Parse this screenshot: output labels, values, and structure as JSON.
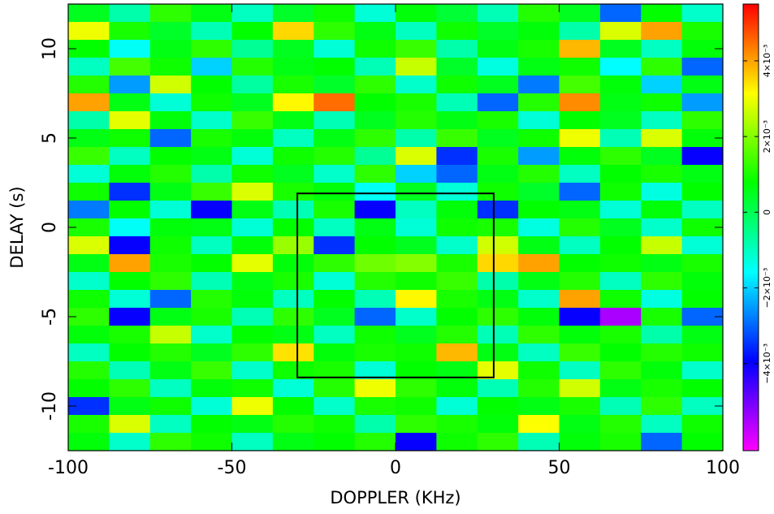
{
  "chart_data": {
    "type": "heatmap",
    "x_label": "DOPPLER (KHz)",
    "y_label": "DELAY (s)",
    "xlim": [
      -100,
      100
    ],
    "ylim": [
      -12.5,
      12.5
    ],
    "xticks": [
      -100,
      -50,
      0,
      50,
      100
    ],
    "yticks": [
      -10,
      -5,
      0,
      5,
      10
    ],
    "clim": [
      -0.0063,
      0.0055
    ],
    "cticks": [
      {
        "value": -0.004,
        "label": "−4×10⁻³"
      },
      {
        "value": -0.002,
        "label": "−2×10⁻³"
      },
      0,
      {
        "value": 0.002,
        "label": "2×10⁻³"
      },
      {
        "value": 0.004,
        "label": "4×10⁻³"
      }
    ],
    "colormap": [
      "#ff00ff",
      "#0000ff",
      "#00ffff",
      "#00ff00",
      "#ffff00",
      "#ff0000"
    ],
    "box": {
      "x": [
        -30,
        30
      ],
      "y": [
        -8.4,
        1.9
      ]
    },
    "values": [
      [
        0.0005,
        -0.0008,
        0.0012,
        0.0006,
        -0.001,
        0.0004,
        0.0009,
        -0.0012,
        0.0007,
        0.0003,
        -0.0009,
        0.0011,
        0.0005,
        -0.003,
        0.0008,
        -0.0011
      ],
      [
        0.003,
        0.001,
        0.0004,
        -0.0009,
        0.0008,
        0.0035,
        0.0012,
        0.0006,
        -0.001,
        0.0009,
        0.0004,
        0.0007,
        -0.0008,
        0.0028,
        0.004,
        0.001
      ],
      [
        0.0008,
        -0.0015,
        0.0006,
        0.0012,
        -0.0006,
        0.0005,
        -0.0012,
        0.0009,
        0.0013,
        -0.0008,
        0.0006,
        0.001,
        0.0038,
        0.0005,
        -0.001,
        0.0007
      ],
      [
        -0.001,
        0.0014,
        0.0009,
        -0.002,
        0.0011,
        0.0006,
        0.0008,
        -0.0009,
        0.0026,
        0.0004,
        -0.0013,
        0.0006,
        0.0009,
        -0.0016,
        0.0012,
        -0.003
      ],
      [
        0.0011,
        -0.0025,
        0.0027,
        0.0008,
        -0.0007,
        0.001,
        0.0004,
        0.0012,
        -0.0011,
        0.0009,
        0.0005,
        -0.0028,
        0.0014,
        0.0007,
        -0.002,
        0.0006
      ],
      [
        0.004,
        0.0006,
        -0.0012,
        0.0009,
        0.0005,
        0.0032,
        0.0045,
        0.0008,
        0.001,
        -0.0009,
        -0.003,
        0.0011,
        0.0042,
        0.0006,
        0.0009,
        -0.0025
      ],
      [
        -0.0008,
        0.0029,
        0.0007,
        -0.0011,
        0.0013,
        0.0006,
        -0.0009,
        0.0005,
        0.0011,
        0.0006,
        0.001,
        -0.0012,
        0.0008,
        0.0005,
        -0.001,
        0.0012
      ],
      [
        0.0006,
        0.0009,
        -0.003,
        0.001,
        0.0007,
        -0.001,
        0.0006,
        0.0012,
        -0.0008,
        0.0013,
        0.0005,
        0.0009,
        0.003,
        -0.0009,
        0.0028,
        0.0007
      ],
      [
        0.0013,
        -0.001,
        0.0008,
        0.0006,
        -0.0012,
        0.0009,
        0.0011,
        -0.0006,
        0.0028,
        -0.0035,
        0.001,
        -0.0025,
        0.0007,
        0.0012,
        0.0005,
        -0.004
      ],
      [
        -0.0012,
        0.0007,
        0.0011,
        -0.0008,
        0.0009,
        0.0005,
        -0.0011,
        0.0012,
        -0.002,
        -0.003,
        0.0006,
        0.0011,
        -0.001,
        0.0008,
        0.001,
        0.0006
      ],
      [
        0.0009,
        -0.0035,
        0.0006,
        0.0013,
        0.0028,
        0.001,
        0.0007,
        -0.0015,
        0.0005,
        -0.0012,
        0.0009,
        0.0004,
        -0.003,
        0.0009,
        -0.0013,
        0.0008
      ],
      [
        -0.0028,
        0.0008,
        -0.0012,
        -0.004,
        0.0006,
        -0.0009,
        0.001,
        -0.004,
        -0.001,
        0.0007,
        -0.0035,
        0.0008,
        0.0006,
        -0.0012,
        0.0007,
        -0.001
      ],
      [
        0.001,
        -0.0015,
        0.0007,
        0.0006,
        -0.0012,
        0.0008,
        -0.001,
        0.0006,
        -0.0012,
        0.0009,
        0.001,
        -0.0013,
        0.0011,
        0.0005,
        -0.0011,
        0.0009
      ],
      [
        0.0028,
        -0.004,
        0.0009,
        -0.001,
        0.0007,
        0.0022,
        -0.0035,
        0.0008,
        0.0005,
        -0.0011,
        0.0027,
        0.0006,
        -0.001,
        0.0008,
        0.0026,
        -0.0012
      ],
      [
        0.0006,
        0.004,
        0.001,
        0.0008,
        0.0029,
        0.0007,
        0.0012,
        0.0018,
        0.002,
        0.001,
        0.0035,
        0.004,
        0.0008,
        0.0009,
        0.0006,
        0.001
      ],
      [
        -0.0011,
        0.0008,
        0.0012,
        -0.0009,
        0.0006,
        0.001,
        -0.0012,
        0.0011,
        0.0009,
        0.0013,
        -0.0008,
        0.0006,
        0.0011,
        -0.001,
        0.0012,
        0.0007
      ],
      [
        0.0009,
        -0.0012,
        -0.003,
        0.0011,
        0.0007,
        -0.001,
        0.0008,
        -0.0009,
        0.0032,
        0.001,
        0.0006,
        -0.0011,
        0.004,
        0.0009,
        -0.0013,
        0.0008
      ],
      [
        0.0012,
        -0.004,
        0.0006,
        0.001,
        -0.0009,
        0.0012,
        0.0005,
        -0.003,
        -0.0011,
        0.0008,
        0.0012,
        0.0007,
        -0.004,
        -0.0055,
        0.001,
        -0.003
      ],
      [
        0.0007,
        0.001,
        0.0026,
        -0.0011,
        0.0008,
        0.0006,
        -0.001,
        0.0009,
        0.0005,
        0.0011,
        -0.0009,
        0.0012,
        0.0007,
        0.001,
        -0.0008,
        0.0006
      ],
      [
        -0.001,
        0.0008,
        0.0011,
        0.0005,
        0.0012,
        0.0034,
        0.0007,
        0.001,
        0.0009,
        0.0038,
        0.0006,
        -0.001,
        0.0013,
        0.0008,
        0.0011,
        0.0009
      ],
      [
        0.0011,
        -0.0009,
        0.0006,
        0.0013,
        -0.0011,
        0.0009,
        0.001,
        -0.0012,
        0.0008,
        0.0006,
        0.0029,
        0.0009,
        -0.001,
        0.0012,
        0.0007,
        -0.0011
      ],
      [
        0.0008,
        0.0012,
        -0.001,
        0.0007,
        0.0009,
        -0.0012,
        0.0011,
        0.003,
        0.0012,
        0.0007,
        -0.0009,
        0.0011,
        0.0027,
        0.0006,
        0.001,
        0.0008
      ],
      [
        -0.0035,
        0.0006,
        0.0009,
        -0.0012,
        0.003,
        0.0008,
        -0.0011,
        0.001,
        0.0009,
        -0.0012,
        0.0008,
        0.0006,
        0.001,
        -0.0009,
        0.0012,
        -0.001
      ],
      [
        0.001,
        0.0028,
        -0.001,
        0.0008,
        0.0006,
        0.0011,
        0.0009,
        -0.0008,
        0.0012,
        0.001,
        0.0007,
        0.0031,
        0.0006,
        0.0011,
        -0.001,
        0.0009
      ],
      [
        0.0007,
        -0.0011,
        0.0012,
        0.0009,
        -0.001,
        0.0006,
        0.0008,
        0.0011,
        -0.004,
        0.0009,
        0.0012,
        -0.0009,
        0.0007,
        0.001,
        -0.003,
        0.0008
      ]
    ]
  }
}
